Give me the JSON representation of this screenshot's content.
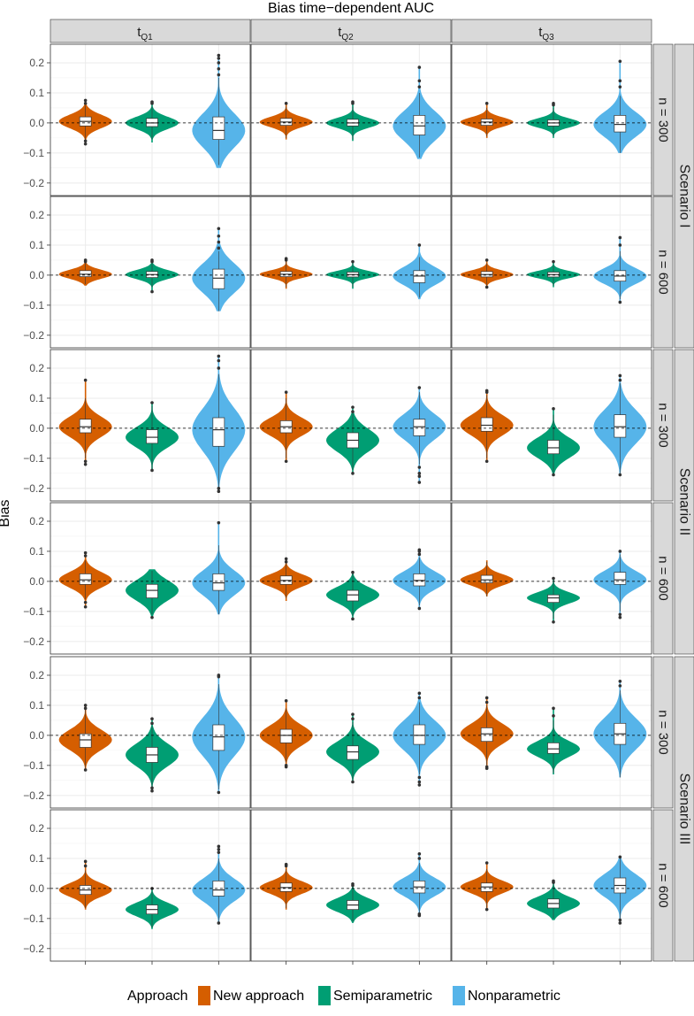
{
  "chart_data": {
    "type": "violin",
    "title": "Bias time−dependent AUC",
    "ylabel": "Bias",
    "ylim": [
      -0.23,
      0.25
    ],
    "yticks": [
      -0.2,
      -0.1,
      0.0,
      0.1,
      0.2
    ],
    "ytick_labels": [
      "−0.2",
      "−0.1",
      "0.0",
      "0.1",
      "0.2"
    ],
    "reference_line": 0,
    "columns": [
      {
        "base": "t",
        "sub": "Q1"
      },
      {
        "base": "t",
        "sub": "Q2"
      },
      {
        "base": "t",
        "sub": "Q3"
      }
    ],
    "row_labels": [
      "n = 300",
      "n = 600",
      "n = 300",
      "n = 600",
      "n = 300",
      "n = 600"
    ],
    "group_labels": [
      "Scenario I",
      "Scenario II",
      "Scenario III"
    ],
    "legend": {
      "title": "Approach",
      "entries": [
        {
          "label": "New approach",
          "color": "#D55E00"
        },
        {
          "label": "Semiparametric",
          "color": "#009E73"
        },
        {
          "label": "Nonparametric",
          "color": "#56B4E9"
        }
      ]
    },
    "series_colors": [
      "#D55E00",
      "#009E73",
      "#56B4E9"
    ],
    "panels": [
      [
        [
          {
            "min": -0.07,
            "q1": -0.01,
            "median": 0.005,
            "q3": 0.02,
            "max": 0.075,
            "whisker_low": -0.055,
            "whisker_high": 0.058,
            "outliers": [
              -0.07,
              -0.06,
              0.065,
              0.075
            ]
          },
          {
            "min": -0.065,
            "q1": -0.012,
            "median": 0.0,
            "q3": 0.015,
            "max": 0.07,
            "whisker_low": -0.055,
            "whisker_high": 0.055,
            "outliers": [
              0.065,
              0.07
            ]
          },
          {
            "min": -0.15,
            "q1": -0.055,
            "median": -0.025,
            "q3": 0.02,
            "max": 0.225,
            "whisker_low": -0.14,
            "whisker_high": 0.15,
            "outliers": [
              0.16,
              0.18,
              0.2,
              0.215,
              0.225
            ]
          }
        ],
        [
          {
            "min": -0.055,
            "q1": -0.008,
            "median": 0.003,
            "q3": 0.015,
            "max": 0.065,
            "whisker_low": -0.05,
            "whisker_high": 0.055,
            "outliers": [
              0.065
            ]
          },
          {
            "min": -0.06,
            "q1": -0.01,
            "median": 0.0,
            "q3": 0.012,
            "max": 0.07,
            "whisker_low": -0.055,
            "whisker_high": 0.055,
            "outliers": [
              0.065,
              0.07
            ]
          },
          {
            "min": -0.12,
            "q1": -0.04,
            "median": -0.01,
            "q3": 0.025,
            "max": 0.185,
            "whisker_low": -0.115,
            "whisker_high": 0.1,
            "outliers": [
              0.12,
              0.14,
              0.185
            ]
          }
        ],
        [
          {
            "min": -0.05,
            "q1": -0.008,
            "median": 0.003,
            "q3": 0.013,
            "max": 0.065,
            "whisker_low": -0.045,
            "whisker_high": 0.05,
            "outliers": [
              0.065
            ]
          },
          {
            "min": -0.05,
            "q1": -0.01,
            "median": 0.0,
            "q3": 0.01,
            "max": 0.065,
            "whisker_low": -0.045,
            "whisker_high": 0.05,
            "outliers": [
              0.06,
              0.065
            ]
          },
          {
            "min": -0.1,
            "q1": -0.03,
            "median": -0.005,
            "q3": 0.025,
            "max": 0.205,
            "whisker_low": -0.1,
            "whisker_high": 0.09,
            "outliers": [
              0.12,
              0.14,
              0.205
            ]
          }
        ]
      ],
      [
        [
          {
            "min": -0.035,
            "q1": -0.005,
            "median": 0.003,
            "q3": 0.015,
            "max": 0.05,
            "whisker_low": -0.03,
            "whisker_high": 0.04,
            "outliers": [
              0.045,
              0.05
            ]
          },
          {
            "min": -0.055,
            "q1": -0.008,
            "median": 0.002,
            "q3": 0.012,
            "max": 0.05,
            "whisker_low": -0.04,
            "whisker_high": 0.04,
            "outliers": [
              -0.055,
              0.045,
              0.05
            ]
          },
          {
            "min": -0.12,
            "q1": -0.045,
            "median": -0.01,
            "q3": 0.02,
            "max": 0.155,
            "whisker_low": -0.12,
            "whisker_high": 0.08,
            "outliers": [
              0.09,
              0.11,
              0.13,
              0.155
            ]
          }
        ],
        [
          {
            "min": -0.045,
            "q1": -0.005,
            "median": 0.003,
            "q3": 0.012,
            "max": 0.055,
            "whisker_low": -0.04,
            "whisker_high": 0.045,
            "outliers": [
              0.05,
              0.055
            ]
          },
          {
            "min": -0.045,
            "q1": -0.006,
            "median": 0.002,
            "q3": 0.01,
            "max": 0.045,
            "whisker_low": -0.04,
            "whisker_high": 0.04,
            "outliers": [
              0.045
            ]
          },
          {
            "min": -0.08,
            "q1": -0.025,
            "median": -0.003,
            "q3": 0.015,
            "max": 0.1,
            "whisker_low": -0.075,
            "whisker_high": 0.06,
            "outliers": [
              0.1
            ]
          }
        ],
        [
          {
            "min": -0.04,
            "q1": -0.006,
            "median": 0.002,
            "q3": 0.012,
            "max": 0.05,
            "whisker_low": -0.035,
            "whisker_high": 0.04,
            "outliers": [
              -0.04,
              0.05
            ]
          },
          {
            "min": -0.04,
            "q1": -0.006,
            "median": 0.002,
            "q3": 0.01,
            "max": 0.045,
            "whisker_low": -0.035,
            "whisker_high": 0.035,
            "outliers": [
              0.045
            ]
          },
          {
            "min": -0.09,
            "q1": -0.02,
            "median": -0.003,
            "q3": 0.015,
            "max": 0.125,
            "whisker_low": -0.08,
            "whisker_high": 0.08,
            "outliers": [
              -0.09,
              0.1,
              0.125
            ]
          }
        ]
      ],
      [
        [
          {
            "min": -0.12,
            "q1": -0.015,
            "median": 0.005,
            "q3": 0.03,
            "max": 0.16,
            "whisker_low": -0.1,
            "whisker_high": 0.1,
            "outliers": [
              -0.12,
              -0.11,
              0.16
            ]
          },
          {
            "min": -0.14,
            "q1": -0.05,
            "median": -0.03,
            "q3": -0.005,
            "max": 0.085,
            "whisker_low": -0.135,
            "whisker_high": 0.075,
            "outliers": [
              -0.14,
              0.085
            ]
          },
          {
            "min": -0.21,
            "q1": -0.06,
            "median": -0.005,
            "q3": 0.035,
            "max": 0.24,
            "whisker_low": -0.2,
            "whisker_high": 0.18,
            "outliers": [
              -0.21,
              -0.2,
              0.2,
              0.225,
              0.24
            ]
          }
        ],
        [
          {
            "min": -0.11,
            "q1": -0.015,
            "median": 0.005,
            "q3": 0.025,
            "max": 0.12,
            "whisker_low": -0.1,
            "whisker_high": 0.1,
            "outliers": [
              -0.11,
              0.12
            ]
          },
          {
            "min": -0.15,
            "q1": -0.065,
            "median": -0.04,
            "q3": -0.015,
            "max": 0.07,
            "whisker_low": -0.14,
            "whisker_high": 0.05,
            "outliers": [
              -0.15,
              0.055,
              0.07
            ]
          },
          {
            "min": -0.18,
            "q1": -0.025,
            "median": 0.005,
            "q3": 0.03,
            "max": 0.135,
            "whisker_low": -0.12,
            "whisker_high": 0.12,
            "outliers": [
              -0.18,
              -0.16,
              -0.15,
              -0.13,
              0.135
            ]
          }
        ],
        [
          {
            "min": -0.11,
            "q1": -0.01,
            "median": 0.01,
            "q3": 0.035,
            "max": 0.125,
            "whisker_low": -0.1,
            "whisker_high": 0.11,
            "outliers": [
              -0.11,
              0.12,
              0.125
            ]
          },
          {
            "min": -0.155,
            "q1": -0.085,
            "median": -0.065,
            "q3": -0.04,
            "max": 0.065,
            "whisker_low": -0.15,
            "whisker_high": 0.045,
            "outliers": [
              -0.155,
              0.065
            ]
          },
          {
            "min": -0.155,
            "q1": -0.03,
            "median": 0.005,
            "q3": 0.045,
            "max": 0.175,
            "whisker_low": -0.15,
            "whisker_high": 0.15,
            "outliers": [
              -0.155,
              0.16,
              0.175
            ]
          }
        ]
      ],
      [
        [
          {
            "min": -0.085,
            "q1": -0.01,
            "median": 0.005,
            "q3": 0.025,
            "max": 0.095,
            "whisker_low": -0.06,
            "whisker_high": 0.07,
            "outliers": [
              -0.085,
              -0.07,
              0.085,
              0.095
            ]
          },
          {
            "min": -0.12,
            "q1": -0.055,
            "median": -0.03,
            "q3": -0.01,
            "max": 0.04,
            "whisker_low": -0.11,
            "whisker_high": 0.035,
            "outliers": [
              -0.12
            ]
          },
          {
            "min": -0.11,
            "q1": -0.03,
            "median": -0.005,
            "q3": 0.025,
            "max": 0.195,
            "whisker_low": -0.11,
            "whisker_high": 0.12,
            "outliers": [
              0.195
            ]
          }
        ],
        [
          {
            "min": -0.065,
            "q1": -0.01,
            "median": 0.003,
            "q3": 0.018,
            "max": 0.075,
            "whisker_low": -0.055,
            "whisker_high": 0.06,
            "outliers": [
              0.065,
              0.075
            ]
          },
          {
            "min": -0.125,
            "q1": -0.065,
            "median": -0.045,
            "q3": -0.03,
            "max": 0.03,
            "whisker_low": -0.115,
            "whisker_high": 0.025,
            "outliers": [
              -0.125,
              0.03
            ]
          },
          {
            "min": -0.09,
            "q1": -0.015,
            "median": 0.003,
            "q3": 0.025,
            "max": 0.105,
            "whisker_low": -0.08,
            "whisker_high": 0.08,
            "outliers": [
              -0.09,
              0.09,
              0.1,
              0.105
            ]
          }
        ],
        [
          {
            "min": -0.05,
            "q1": -0.005,
            "median": 0.005,
            "q3": 0.02,
            "max": 0.07,
            "whisker_low": -0.05,
            "whisker_high": 0.065,
            "outliers": []
          },
          {
            "min": -0.135,
            "q1": -0.07,
            "median": -0.055,
            "q3": -0.045,
            "max": 0.01,
            "whisker_low": -0.125,
            "whisker_high": 0.005,
            "outliers": [
              -0.135,
              0.01
            ]
          },
          {
            "min": -0.12,
            "q1": -0.01,
            "median": 0.005,
            "q3": 0.03,
            "max": 0.1,
            "whisker_low": -0.1,
            "whisker_high": 0.09,
            "outliers": [
              -0.12,
              -0.11,
              0.1
            ]
          }
        ]
      ],
      [
        [
          {
            "min": -0.115,
            "q1": -0.04,
            "median": -0.015,
            "q3": 0.005,
            "max": 0.1,
            "whisker_low": -0.11,
            "whisker_high": 0.09,
            "outliers": [
              -0.115,
              0.09,
              0.1
            ]
          },
          {
            "min": -0.185,
            "q1": -0.09,
            "median": -0.065,
            "q3": -0.04,
            "max": 0.055,
            "whisker_low": -0.17,
            "whisker_high": 0.03,
            "outliers": [
              -0.185,
              -0.175,
              0.04,
              0.055
            ]
          },
          {
            "min": -0.19,
            "q1": -0.05,
            "median": -0.005,
            "q3": 0.035,
            "max": 0.2,
            "whisker_low": -0.18,
            "whisker_high": 0.17,
            "outliers": [
              -0.19,
              0.195,
              0.2
            ]
          }
        ],
        [
          {
            "min": -0.105,
            "q1": -0.025,
            "median": 0.0,
            "q3": 0.02,
            "max": 0.115,
            "whisker_low": -0.09,
            "whisker_high": 0.09,
            "outliers": [
              -0.105,
              -0.1,
              0.115
            ]
          },
          {
            "min": -0.155,
            "q1": -0.08,
            "median": -0.055,
            "q3": -0.035,
            "max": 0.07,
            "whisker_low": -0.15,
            "whisker_high": 0.045,
            "outliers": [
              -0.155,
              0.055,
              0.07
            ]
          },
          {
            "min": -0.165,
            "q1": -0.03,
            "median": 0.0,
            "q3": 0.035,
            "max": 0.14,
            "whisker_low": -0.13,
            "whisker_high": 0.11,
            "outliers": [
              -0.165,
              -0.155,
              -0.14,
              0.125,
              0.14
            ]
          }
        ],
        [
          {
            "min": -0.11,
            "q1": -0.02,
            "median": 0.005,
            "q3": 0.025,
            "max": 0.125,
            "whisker_low": -0.1,
            "whisker_high": 0.1,
            "outliers": [
              -0.11,
              -0.105,
              0.11,
              0.125
            ]
          },
          {
            "min": -0.13,
            "q1": -0.06,
            "median": -0.045,
            "q3": -0.025,
            "max": 0.09,
            "whisker_low": -0.125,
            "whisker_high": 0.05,
            "outliers": [
              0.065,
              0.09
            ]
          },
          {
            "min": -0.14,
            "q1": -0.03,
            "median": 0.005,
            "q3": 0.04,
            "max": 0.18,
            "whisker_low": -0.14,
            "whisker_high": 0.15,
            "outliers": [
              0.165,
              0.18
            ]
          }
        ]
      ],
      [
        [
          {
            "min": -0.07,
            "q1": -0.02,
            "median": -0.005,
            "q3": 0.01,
            "max": 0.09,
            "whisker_low": -0.065,
            "whisker_high": 0.06,
            "outliers": [
              0.075,
              0.09
            ]
          },
          {
            "min": -0.135,
            "q1": -0.085,
            "median": -0.07,
            "q3": -0.055,
            "max": 0.0,
            "whisker_low": -0.13,
            "whisker_high": -0.01,
            "outliers": [
              0.0
            ]
          },
          {
            "min": -0.115,
            "q1": -0.025,
            "median": -0.005,
            "q3": 0.025,
            "max": 0.14,
            "whisker_low": -0.11,
            "whisker_high": 0.1,
            "outliers": [
              -0.115,
              0.12,
              0.13,
              0.14
            ]
          }
        ],
        [
          {
            "min": -0.07,
            "q1": -0.01,
            "median": 0.003,
            "q3": 0.018,
            "max": 0.08,
            "whisker_low": -0.065,
            "whisker_high": 0.065,
            "outliers": [
              0.075,
              0.08
            ]
          },
          {
            "min": -0.115,
            "q1": -0.07,
            "median": -0.055,
            "q3": -0.04,
            "max": 0.015,
            "whisker_low": -0.11,
            "whisker_high": 0.005,
            "outliers": [
              0.01,
              0.015
            ]
          },
          {
            "min": -0.09,
            "q1": -0.015,
            "median": 0.005,
            "q3": 0.025,
            "max": 0.115,
            "whisker_low": -0.08,
            "whisker_high": 0.085,
            "outliers": [
              -0.09,
              -0.085,
              0.1,
              0.115
            ]
          }
        ],
        [
          {
            "min": -0.07,
            "q1": -0.01,
            "median": 0.005,
            "q3": 0.018,
            "max": 0.085,
            "whisker_low": -0.065,
            "whisker_high": 0.065,
            "outliers": [
              -0.07,
              0.085
            ]
          },
          {
            "min": -0.105,
            "q1": -0.065,
            "median": -0.05,
            "q3": -0.035,
            "max": 0.025,
            "whisker_low": -0.1,
            "whisker_high": 0.015,
            "outliers": [
              0.02,
              0.025
            ]
          },
          {
            "min": -0.115,
            "q1": -0.015,
            "median": 0.01,
            "q3": 0.035,
            "max": 0.105,
            "whisker_low": -0.1,
            "whisker_high": 0.1,
            "outliers": [
              -0.115,
              -0.105,
              0.105
            ]
          }
        ]
      ]
    ]
  }
}
